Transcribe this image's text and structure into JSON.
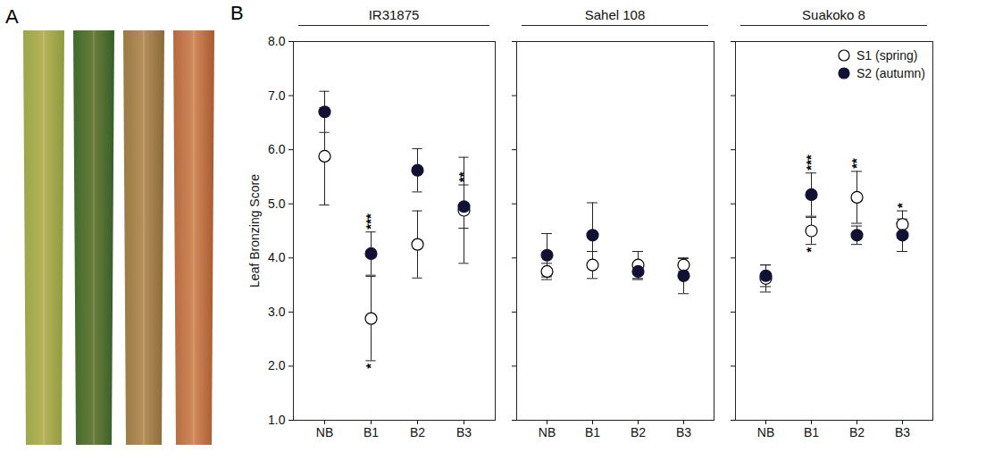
{
  "panel_labels": [
    "A",
    "B"
  ],
  "chart_data": [
    {
      "type": "scatter",
      "title": "IR31875",
      "y_label": "Leaf Bronzing Score",
      "categories": [
        "NB",
        "B1",
        "B2",
        "B3"
      ],
      "ylim": [
        1,
        8
      ],
      "yticks": [
        1,
        2,
        3,
        4,
        5,
        6,
        7,
        8
      ],
      "series": [
        {
          "name": "S1 (spring)",
          "marker": "open",
          "color": "#000000",
          "values": [
            5.88,
            2.88,
            4.25,
            4.88
          ],
          "errors": [
            0.9,
            0.78,
            0.62,
            0.98
          ],
          "significance": [
            null,
            "*",
            null,
            null
          ]
        },
        {
          "name": "S2 (autumn)",
          "marker": "filled",
          "color": "#111133",
          "values": [
            6.7,
            4.08,
            5.62,
            4.95
          ],
          "errors": [
            0.38,
            0.4,
            0.4,
            0.4
          ],
          "significance": [
            null,
            "***",
            null,
            "**"
          ]
        }
      ]
    },
    {
      "type": "scatter",
      "title": "Sahel 108",
      "categories": [
        "NB",
        "B1",
        "B2",
        "B3"
      ],
      "ylim": [
        1,
        8
      ],
      "yticks": [
        1,
        2,
        3,
        4,
        5,
        6,
        7,
        8
      ],
      "series": [
        {
          "name": "S1 (spring)",
          "marker": "open",
          "color": "#000000",
          "values": [
            3.75,
            3.87,
            3.87,
            3.87
          ],
          "errors": [
            0.15,
            0.25,
            0.25,
            0.12
          ],
          "significance": [
            null,
            null,
            null,
            null
          ]
        },
        {
          "name": "S2 (autumn)",
          "marker": "filled",
          "color": "#111133",
          "values": [
            4.05,
            4.42,
            3.75,
            3.67
          ],
          "errors": [
            0.4,
            0.6,
            0.15,
            0.33
          ],
          "significance": [
            null,
            null,
            null,
            null
          ]
        }
      ]
    },
    {
      "type": "scatter",
      "title": "Suakoko 8",
      "legend": "top-right",
      "categories": [
        "NB",
        "B1",
        "B2",
        "B3"
      ],
      "ylim": [
        1,
        8
      ],
      "yticks": [
        1,
        2,
        3,
        4,
        5,
        6,
        7,
        8
      ],
      "series": [
        {
          "name": "S1 (spring)",
          "marker": "open",
          "color": "#000000",
          "values": [
            3.62,
            4.5,
            5.12,
            4.62
          ],
          "errors": [
            0.25,
            0.25,
            0.48,
            0.25
          ],
          "significance": [
            null,
            "*",
            "**",
            "*"
          ]
        },
        {
          "name": "S2 (autumn)",
          "marker": "filled",
          "color": "#111133",
          "values": [
            3.67,
            5.17,
            4.42,
            4.42
          ],
          "errors": [
            0.2,
            0.4,
            0.17,
            0.3
          ],
          "significance": [
            null,
            "***",
            null,
            null
          ]
        }
      ]
    }
  ]
}
